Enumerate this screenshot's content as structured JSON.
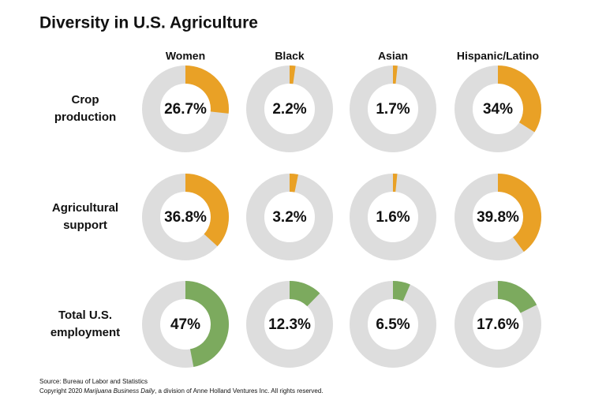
{
  "chart_data": {
    "type": "donut-grid",
    "title": "Diversity in U.S. Agriculture",
    "columns": [
      "Women",
      "Black",
      "Asian",
      "Hispanic/Latino"
    ],
    "ylim": [
      0,
      100
    ],
    "track_color": "#dddddd",
    "rows": [
      {
        "label": [
          "Crop",
          "production"
        ],
        "color": "#e9a126",
        "values": [
          26.7,
          2.2,
          1.7,
          34
        ],
        "value_labels": [
          "26.7%",
          "2.2%",
          "1.7%",
          "34%"
        ]
      },
      {
        "label": [
          "Agricultural",
          "support"
        ],
        "color": "#e9a126",
        "values": [
          36.8,
          3.2,
          1.6,
          39.8
        ],
        "value_labels": [
          "36.8%",
          "3.2%",
          "1.6%",
          "39.8%"
        ]
      },
      {
        "label": [
          "Total U.S.",
          "employment"
        ],
        "color": "#7caa5e",
        "values": [
          47,
          12.3,
          6.5,
          17.6
        ],
        "value_labels": [
          "47%",
          "12.3%",
          "6.5%",
          "17.6%"
        ]
      }
    ],
    "source": "Source: Bureau of Labor and Statistics",
    "copyright": [
      "Copyright 2020",
      "Marijuana Business Daily",
      ", a division of Anne Holland Ventures Inc. All rights reserved."
    ]
  }
}
